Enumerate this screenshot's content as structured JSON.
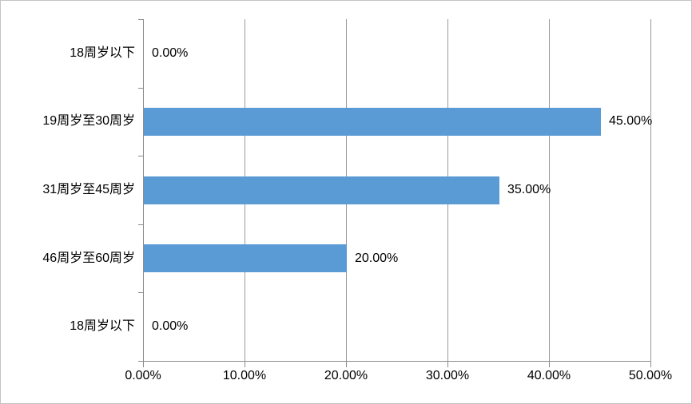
{
  "chart_data": {
    "type": "bar",
    "orientation": "horizontal",
    "title": "",
    "xlabel": "",
    "ylabel": "",
    "legend": "none",
    "grid": "vertical",
    "categories": [
      "18周岁以下",
      "19周岁至30周岁",
      "31周岁至45周岁",
      "46周岁至60周岁",
      "18周岁以下"
    ],
    "values": [
      0,
      45,
      35,
      20,
      0
    ],
    "data_labels": [
      "0.00%",
      "45.00%",
      "35.00%",
      "20.00%",
      "0.00%"
    ],
    "x_ticks": [
      "0.00%",
      "10.00%",
      "20.00%",
      "30.00%",
      "40.00%",
      "50.00%"
    ],
    "xlim": [
      0,
      50
    ],
    "colors": {
      "bar": "#5b9bd5",
      "gridline": "#9a9a9a",
      "axis": "#8c8c8c",
      "text": "#000000",
      "frame_border": "#c3c3c3",
      "background": "#ffffff"
    }
  }
}
